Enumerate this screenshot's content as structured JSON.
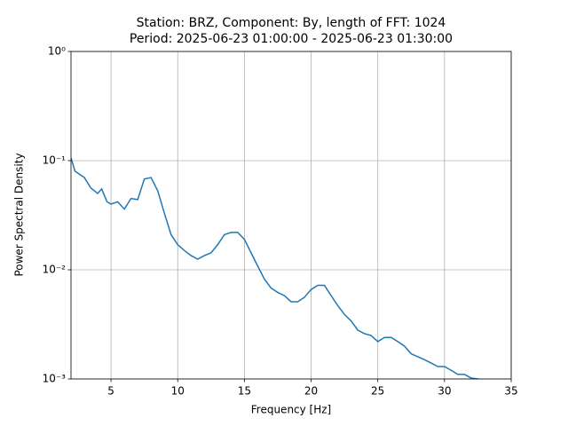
{
  "chart_data": {
    "type": "line",
    "title": "Station: BRZ, Component: By, length of FFT: 1024",
    "subtitle": "Period: 2025-06-23 01:00:00 - 2025-06-23 01:30:00",
    "xlabel": "Frequency [Hz]",
    "ylabel": "Power Spectral Density",
    "yscale": "log",
    "grid": true,
    "xlim": [
      2,
      35
    ],
    "xticks": [
      5,
      10,
      15,
      20,
      25,
      30,
      35
    ],
    "ylim": [
      0.001,
      1
    ],
    "yticks": [
      {
        "value": 0.001,
        "label": "10⁻³"
      },
      {
        "value": 0.01,
        "label": "10⁻²"
      },
      {
        "value": 0.1,
        "label": "10⁻¹"
      },
      {
        "value": 1,
        "label": "10⁰"
      }
    ],
    "series": [
      {
        "color": "#1f77b4",
        "x": [
          2,
          2.3,
          3,
          3.5,
          4,
          4.3,
          4.7,
          5,
          5.5,
          6,
          6.5,
          7,
          7.5,
          8,
          8.5,
          9,
          9.5,
          10,
          10.5,
          11,
          11.5,
          12,
          12.5,
          13,
          13.5,
          14,
          14.5,
          15,
          15.5,
          16,
          16.5,
          17,
          17.5,
          18,
          18.5,
          19,
          19.5,
          20,
          20.5,
          21,
          21.5,
          22,
          22.5,
          23,
          23.5,
          24,
          24.5,
          25,
          25.5,
          26,
          26.5,
          27,
          27.5,
          28,
          28.5,
          29,
          29.5,
          30,
          30.5,
          31,
          31.5,
          32,
          32.5,
          32.8
        ],
        "values": [
          0.106,
          0.08,
          0.07,
          0.056,
          0.05,
          0.055,
          0.042,
          0.04,
          0.042,
          0.036,
          0.045,
          0.044,
          0.068,
          0.07,
          0.053,
          0.033,
          0.021,
          0.017,
          0.015,
          0.0135,
          0.0125,
          0.0135,
          0.0143,
          0.017,
          0.021,
          0.022,
          0.022,
          0.019,
          0.0143,
          0.0108,
          0.0082,
          0.0068,
          0.0062,
          0.0058,
          0.0051,
          0.0051,
          0.0056,
          0.0066,
          0.0072,
          0.0072,
          0.0058,
          0.0047,
          0.0039,
          0.0034,
          0.0028,
          0.0026,
          0.0025,
          0.0022,
          0.0024,
          0.0024,
          0.0022,
          0.002,
          0.0017,
          0.0016,
          0.0015,
          0.0014,
          0.0013,
          0.0013,
          0.0012,
          0.0011,
          0.0011,
          0.00102,
          0.001,
          0.00098
        ]
      }
    ]
  }
}
